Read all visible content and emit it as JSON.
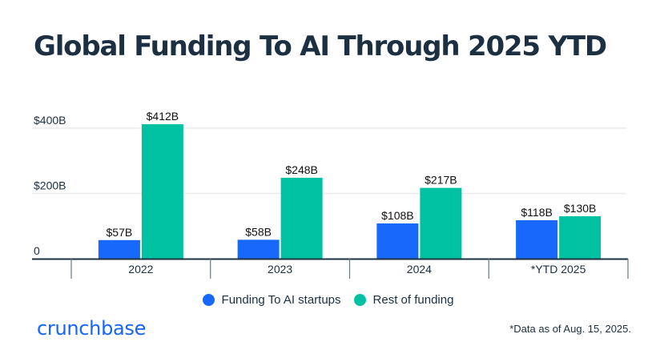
{
  "chart_data": {
    "type": "bar",
    "title": "Global Funding To AI Through 2025 YTD",
    "categories": [
      "2022",
      "2023",
      "2024",
      "*YTD 2025"
    ],
    "series": [
      {
        "name": "Funding To AI startups",
        "color": "#1868fc",
        "values": [
          57,
          58,
          108,
          118
        ],
        "labels": [
          "$57B",
          "$58B",
          "$108B",
          "$118B"
        ]
      },
      {
        "name": "Rest of funding",
        "color": "#00c2a2",
        "values": [
          412,
          248,
          217,
          130
        ],
        "labels": [
          "$412B",
          "$248B",
          "$217B",
          "$130B"
        ]
      }
    ],
    "ylim": [
      0,
      400
    ],
    "yticks": [
      0,
      200,
      400
    ],
    "ytick_labels": [
      "0",
      "$200B",
      "$400B"
    ],
    "xlabel": "",
    "ylabel": "",
    "unit": "USD billions",
    "grid": true,
    "legend_position": "bottom-center"
  },
  "branding": {
    "logo_text": "crunchbase",
    "logo_color": "#1466fa"
  },
  "footnote": "*Data as of Aug. 15, 2025."
}
